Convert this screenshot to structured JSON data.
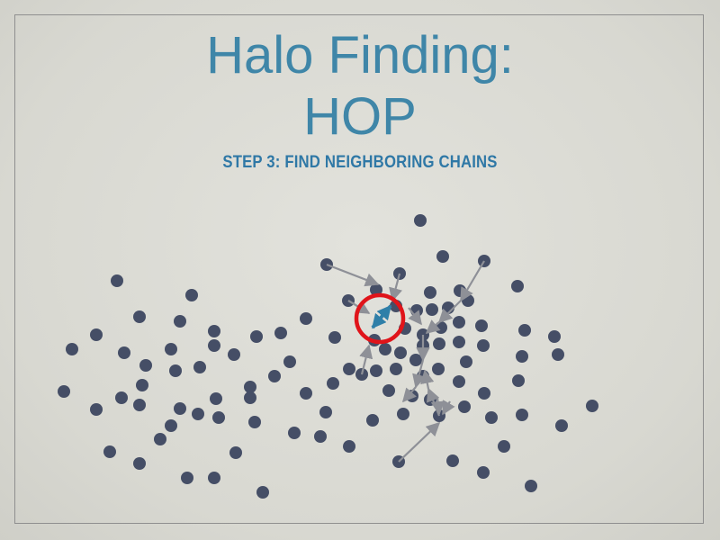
{
  "slide": {
    "title_line1": "Halo Finding:",
    "title_line2": "HOP",
    "subtitle": "STEP 3: FIND NEIGHBORING CHAINS"
  },
  "colors": {
    "background": "#dcdcd6",
    "title": "#3f86a8",
    "particle": "#454e66",
    "chain_arrow": "#8e9097",
    "neighbor_arrow": "#2f7fa8",
    "highlight_ring": "#e0141a"
  }
}
